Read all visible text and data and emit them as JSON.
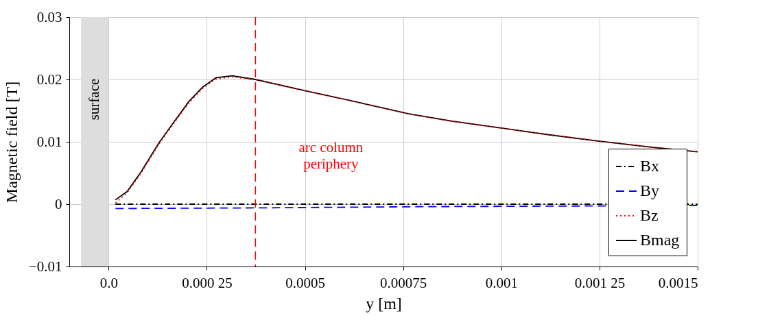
{
  "chart_data": {
    "type": "line",
    "xlabel": "y [m]",
    "ylabel": "Magnetic field [T]",
    "xlim": [
      -0.0001,
      0.0015
    ],
    "ylim": [
      -0.01,
      0.03
    ],
    "xticks": [
      {
        "value": 0,
        "label": "0.0"
      },
      {
        "value": 0.00025,
        "label": "0.000 25"
      },
      0.0005,
      0.00075,
      0.001,
      {
        "value": 0.00125,
        "label": "0.001 25"
      },
      0.0015
    ],
    "yticks": [
      {
        "value": -0.01,
        "label": "−0.01"
      },
      0,
      0.01,
      0.02,
      0.03
    ],
    "grid": true,
    "legend": "bottom right",
    "marker": "none",
    "series": [
      {
        "name": "Bx",
        "color": "#000000",
        "line_style": "dashdot",
        "x": [
          1.75e-05,
          0.0005,
          0.001,
          0.0015
        ],
        "values": [
          0,
          0,
          0,
          0
        ]
      },
      {
        "name": "By",
        "color": "#0000ff",
        "line_style": "dashed",
        "x": [
          1.75e-05,
          0.000374,
          0.0008,
          0.0012,
          0.0015
        ],
        "values": [
          -0.0007,
          -0.0006,
          -0.0004,
          -0.0003,
          -0.0002
        ]
      },
      {
        "name": "Bz",
        "color": "#ff0000",
        "line_style": "dotted",
        "x": [
          1.75e-05,
          4.7e-05,
          8.2e-05,
          0.000129,
          0.00017,
          0.000205,
          0.00024,
          0.000274,
          0.000315,
          0.000374,
          0.0005,
          0.000624,
          0.000764,
          0.000875,
          0.001,
          0.001125,
          0.00125,
          0.001375,
          0.0015
        ],
        "values": [
          0.0002,
          0.0018,
          0.0049,
          0.0097,
          0.0133,
          0.0163,
          0.0186,
          0.0201,
          0.0204,
          0.02,
          0.0182,
          0.0165,
          0.0145,
          0.0133,
          0.0122,
          0.0111,
          0.0101,
          0.0092,
          0.0084
        ]
      },
      {
        "name": "Bmag",
        "color": "#000000",
        "line_style": "solid",
        "x": [
          1.75e-05,
          4.7e-05,
          8.2e-05,
          0.000129,
          0.00017,
          0.000205,
          0.00024,
          0.000274,
          0.000315,
          0.000374,
          0.0005,
          0.000624,
          0.000764,
          0.000875,
          0.001,
          0.001125,
          0.00125,
          0.001375,
          0.0015
        ],
        "values": [
          0.0007,
          0.002,
          0.0051,
          0.0099,
          0.0135,
          0.0165,
          0.0188,
          0.0203,
          0.0206,
          0.02,
          0.0182,
          0.0165,
          0.0145,
          0.0133,
          0.0122,
          0.0111,
          0.0101,
          0.0092,
          0.0084
        ]
      }
    ],
    "ref_lines": [
      {
        "axis": "x",
        "value": 0.000374,
        "label": "arc column periphery",
        "color": "#ff0000",
        "line_style": "dashed"
      }
    ],
    "bands": [
      {
        "axis": "x",
        "from": -7e-05,
        "to": 0,
        "label": "surface",
        "color": "#dddddd"
      }
    ]
  }
}
